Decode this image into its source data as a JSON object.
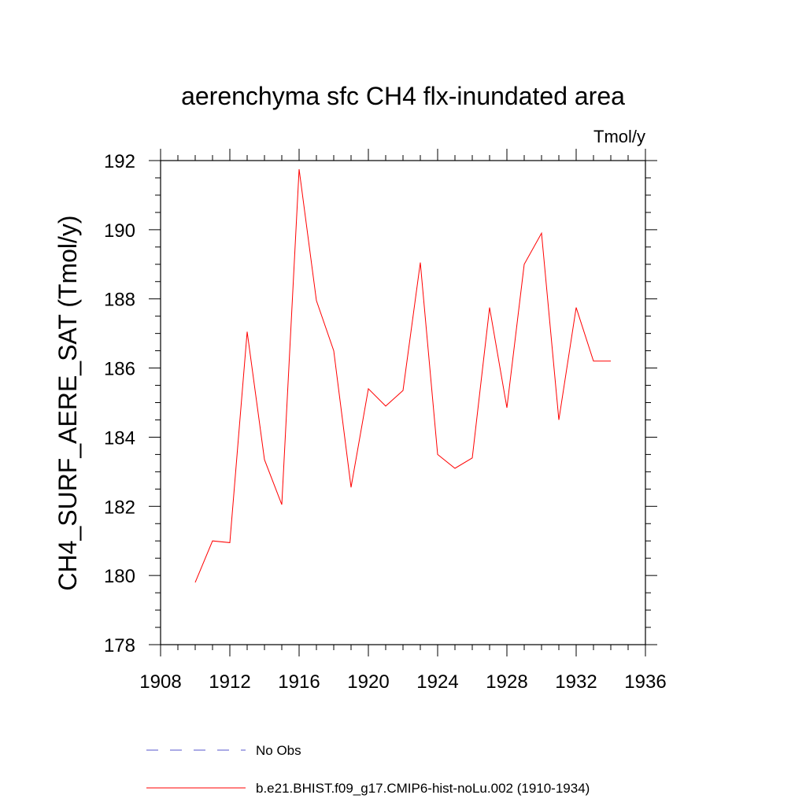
{
  "chart_data": {
    "type": "line",
    "title": "aerenchyma sfc CH4 flx-inundated area",
    "units": "Tmol/y",
    "ylabel": "CH4_SURF_AERE_SAT  (Tmol/y)",
    "xlabel": "",
    "xlim": [
      1908,
      1936
    ],
    "ylim": [
      178,
      192
    ],
    "x_ticks": [
      "1908",
      "1912",
      "1916",
      "1920",
      "1924",
      "1928",
      "1932",
      "1936"
    ],
    "y_ticks": [
      "178",
      "180",
      "182",
      "184",
      "186",
      "188",
      "190",
      "192"
    ],
    "x": [
      1910,
      1911,
      1912,
      1913,
      1914,
      1915,
      1916,
      1917,
      1918,
      1919,
      1920,
      1921,
      1922,
      1923,
      1924,
      1925,
      1926,
      1927,
      1928,
      1929,
      1930,
      1931,
      1932,
      1933,
      1934
    ],
    "series": [
      {
        "name": "b.e21.BHIST.f09_g17.CMIP6-hist-noLu.002 (1910-1934)",
        "color": "#ff0000",
        "values": [
          179.8,
          181.0,
          180.95,
          187.05,
          183.35,
          182.05,
          191.75,
          187.95,
          186.5,
          182.55,
          185.4,
          184.9,
          185.35,
          189.05,
          183.5,
          183.1,
          183.4,
          187.75,
          184.85,
          189.0,
          189.9,
          184.5,
          187.75,
          186.2,
          186.2
        ]
      }
    ],
    "legend": [
      {
        "label": "No Obs",
        "style": "dashed",
        "color": "#5555cc"
      },
      {
        "label": "b.e21.BHIST.f09_g17.CMIP6-hist-noLu.002 (1910-1934)",
        "style": "solid",
        "color": "#ff0000"
      }
    ],
    "grid": false,
    "legend_position": "bottom"
  }
}
